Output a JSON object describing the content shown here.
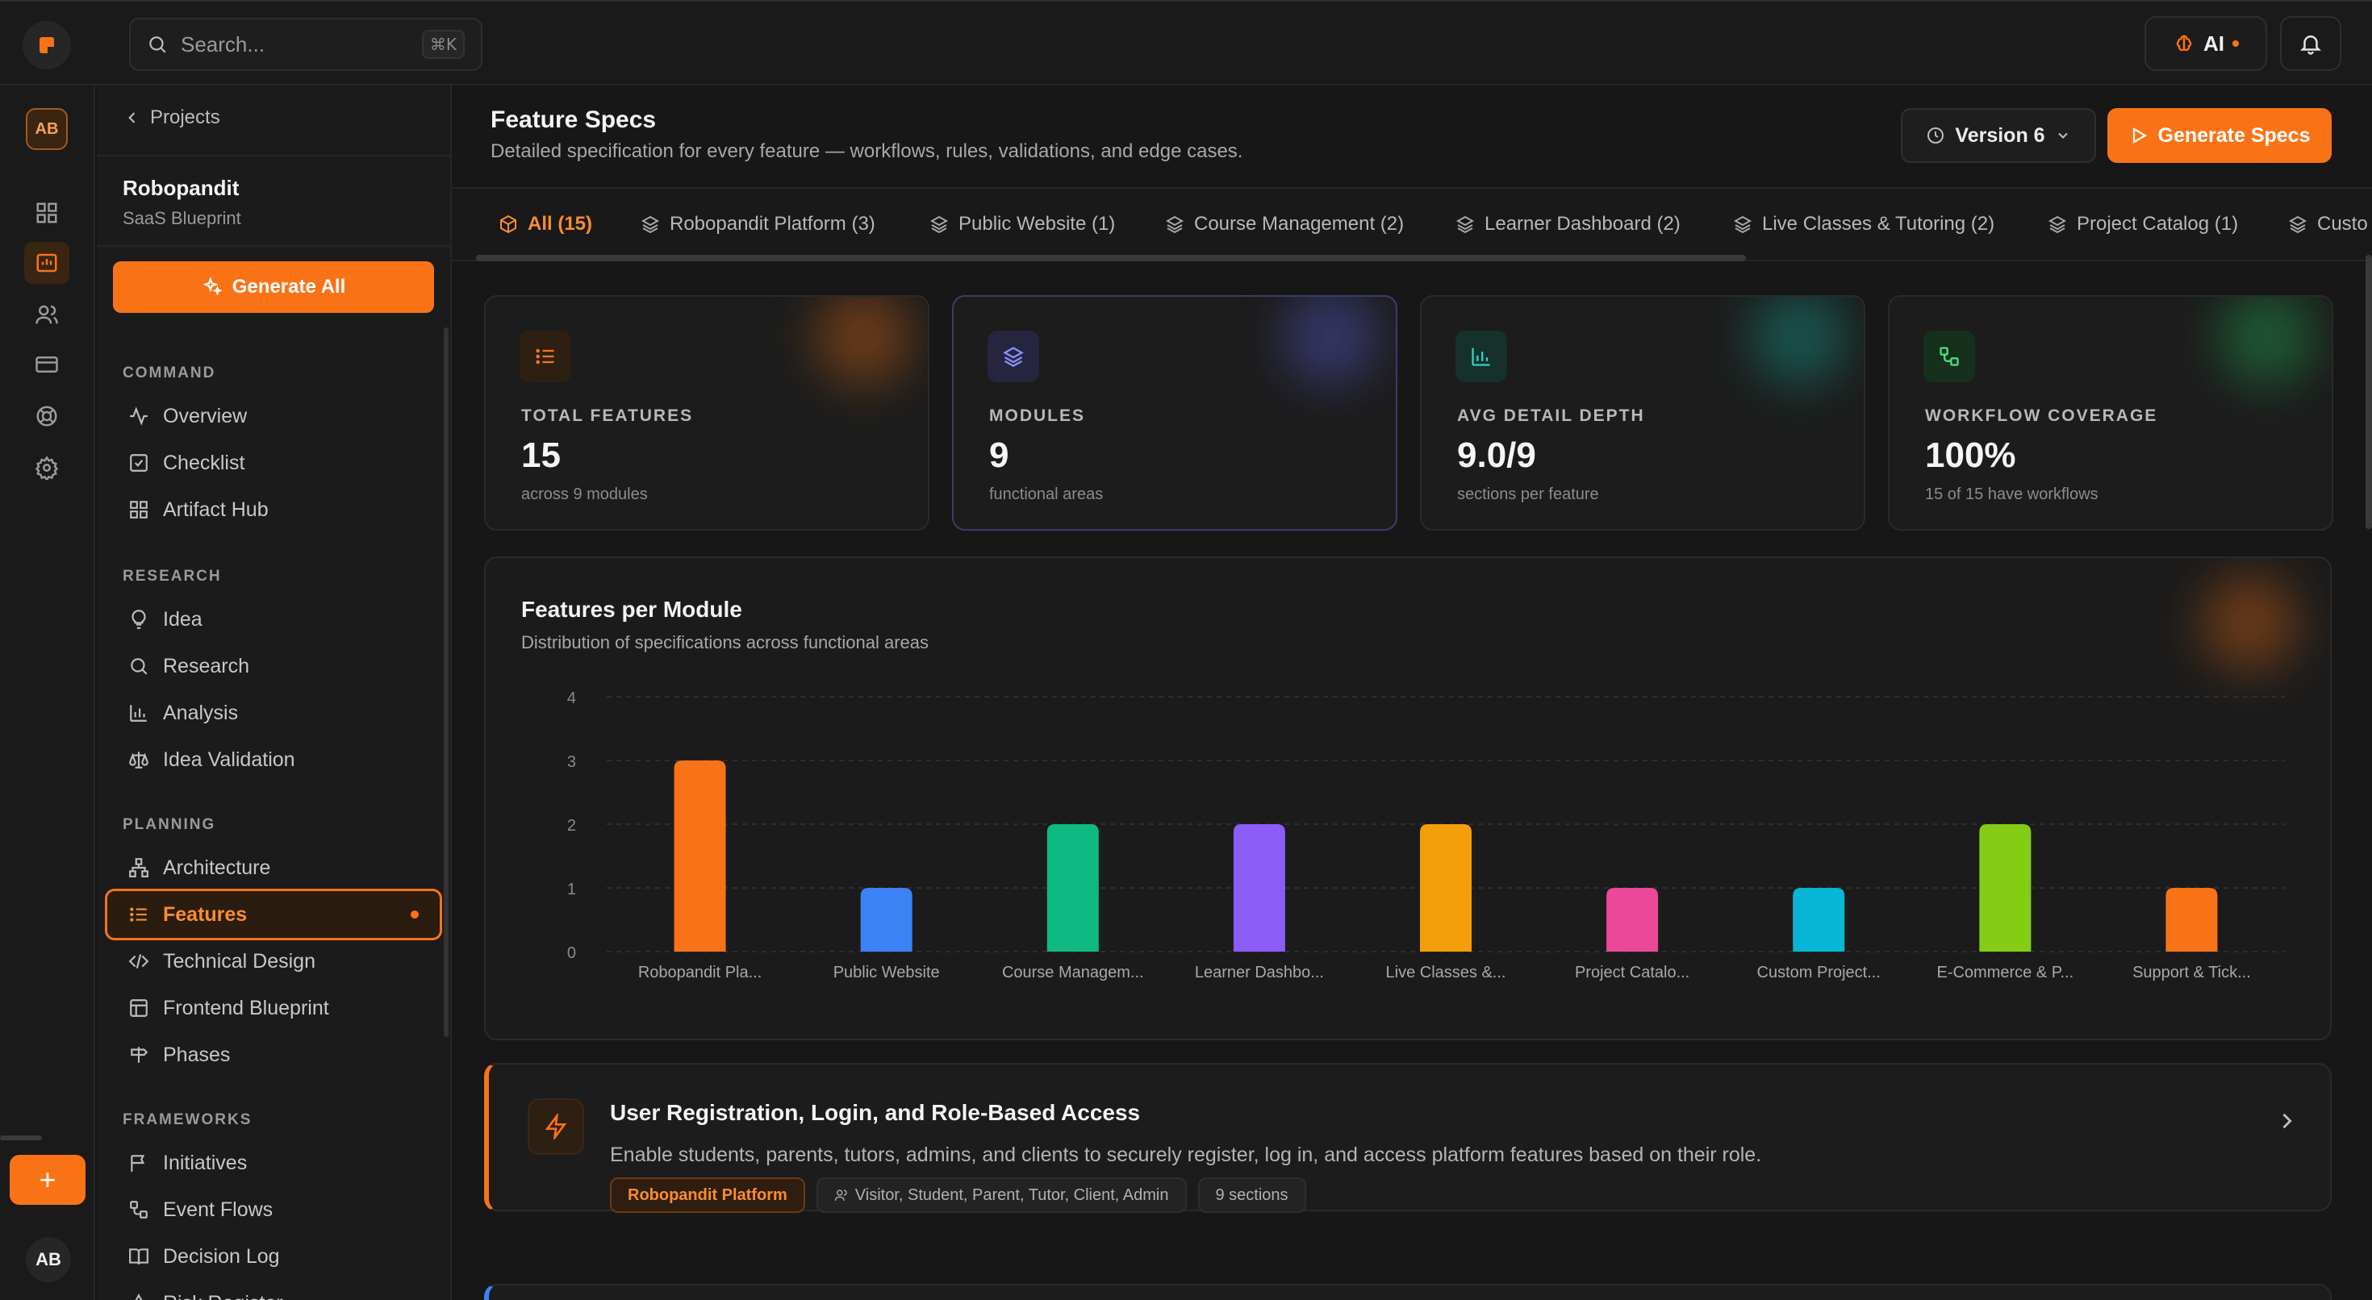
{
  "colors": {
    "accent": "#f97316",
    "background": "#171717",
    "card": "#1c1c1c"
  },
  "topbar": {
    "search_placeholder": "Search...",
    "search_shortcut": "⌘K",
    "ai_label": "AI"
  },
  "rail": {
    "avatar": "AB",
    "user": "AB",
    "add": "+"
  },
  "sidebar": {
    "back_label": "Projects",
    "project_name": "Robopandit",
    "project_type": "SaaS Blueprint",
    "generate_all": "Generate All",
    "sections": [
      {
        "title": "COMMAND",
        "items": [
          "Overview",
          "Checklist",
          "Artifact Hub"
        ]
      },
      {
        "title": "RESEARCH",
        "items": [
          "Idea",
          "Research",
          "Analysis",
          "Idea Validation"
        ]
      },
      {
        "title": "PLANNING",
        "items": [
          "Architecture",
          "Features",
          "Technical Design",
          "Frontend Blueprint",
          "Phases"
        ]
      },
      {
        "title": "FRAMEWORKS",
        "items": [
          "Initiatives",
          "Event Flows",
          "Decision Log",
          "Risk Register"
        ]
      }
    ],
    "active_item": "Features"
  },
  "header": {
    "title": "Feature Specs",
    "subtitle": "Detailed specification for every feature — workflows, rules, validations, and edge cases.",
    "version_label": "Version 6",
    "generate_specs": "Generate Specs"
  },
  "tabs": [
    "All (15)",
    "Robopandit Platform (3)",
    "Public Website (1)",
    "Course Management (2)",
    "Learner Dashboard (2)",
    "Live Classes & Tutoring (2)",
    "Project Catalog (1)",
    "Custo"
  ],
  "stats": [
    {
      "label": "TOTAL FEATURES",
      "value": "15",
      "sub": "across 9 modules",
      "color": "#f97316",
      "icon": "list-icon"
    },
    {
      "label": "MODULES",
      "value": "9",
      "sub": "functional areas",
      "color": "#6366f1",
      "icon": "layers-icon"
    },
    {
      "label": "AVG DETAIL DEPTH",
      "value": "9.0/9",
      "sub": "sections per feature",
      "color": "#14b8a6",
      "icon": "bar-chart-icon"
    },
    {
      "label": "WORKFLOW COVERAGE",
      "value": "100%",
      "sub": "15 of 15 have workflows",
      "color": "#22c55e",
      "icon": "workflow-icon"
    }
  ],
  "chart_data": {
    "type": "bar",
    "title": "Features per Module",
    "subtitle": "Distribution of specifications across functional areas",
    "categories": [
      "Robopandit Pla...",
      "Public Website",
      "Course Managem...",
      "Learner Dashbo...",
      "Live Classes &...",
      "Project Catalo...",
      "Custom Project...",
      "E-Commerce & P...",
      "Support & Tick..."
    ],
    "values": [
      3,
      1,
      2,
      2,
      2,
      1,
      1,
      2,
      1
    ],
    "colors": [
      "#f97316",
      "#3b82f6",
      "#10b981",
      "#8b5cf6",
      "#f59e0b",
      "#ec4899",
      "#06b6d4",
      "#84cc16",
      "#f97316"
    ],
    "yticks": [
      "0",
      "1",
      "2",
      "3",
      "4"
    ],
    "ylim": [
      0,
      4
    ],
    "grid": true
  },
  "feature": {
    "title": "User Registration, Login, and Role-Based Access",
    "description": "Enable students, parents, tutors, admins, and clients to securely register, log in, and access platform features based on their role.",
    "module": "Robopandit Platform",
    "roles": "Visitor, Student, Parent, Tutor, Client, Admin",
    "sections": "9 sections"
  }
}
